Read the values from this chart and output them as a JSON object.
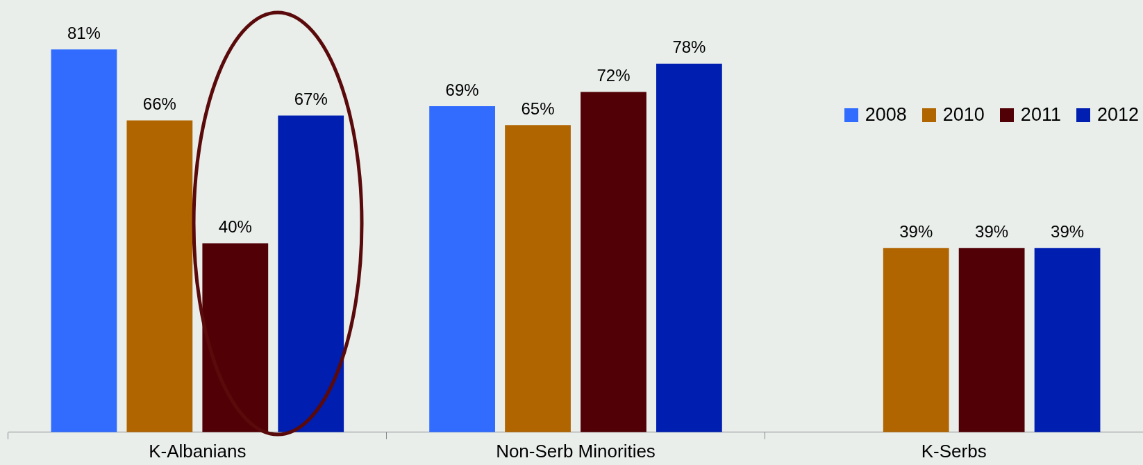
{
  "chart_data": {
    "type": "bar",
    "categories": [
      "K-Albanians",
      "Non-Serb Minorities",
      "K-Serbs"
    ],
    "series": [
      {
        "name": "2008",
        "color": "#316cff",
        "values": [
          81,
          69,
          null
        ],
        "value_labels": [
          "81%",
          "69%",
          null
        ]
      },
      {
        "name": "2010",
        "color": "#b06500",
        "values": [
          66,
          65,
          39
        ],
        "value_labels": [
          "66%",
          "65%",
          "39%"
        ]
      },
      {
        "name": "2011",
        "color": "#510006",
        "values": [
          40,
          72,
          39
        ],
        "value_labels": [
          "40%",
          "72%",
          "39%"
        ]
      },
      {
        "name": "2012",
        "color": "#001eb0",
        "values": [
          67,
          78,
          39
        ],
        "value_labels": [
          "67%",
          "78%",
          "39%"
        ]
      }
    ],
    "legend": "right",
    "grid": false
  }
}
